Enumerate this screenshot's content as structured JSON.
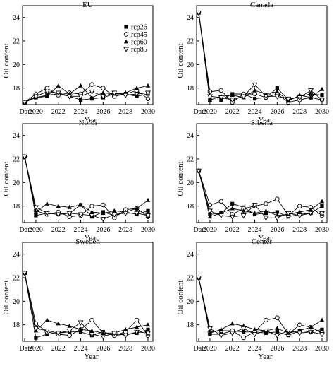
{
  "chart_data": {
    "xlabel": "Year",
    "ylabel": "Oil content",
    "x_categories": [
      "Data",
      "2020",
      "2021",
      "2022",
      "2023",
      "2024",
      "2025",
      "2026",
      "2027",
      "2028",
      "2029",
      "2030"
    ],
    "x_tick_labels": [
      "Data",
      "2020",
      "2022",
      "2024",
      "2026",
      "2028",
      "2030"
    ],
    "y_ticks": [
      18,
      20,
      22,
      24
    ],
    "ylim": [
      16.6,
      25.0
    ],
    "legend": {
      "entries": [
        {
          "name": "rcp26",
          "marker": "square"
        },
        {
          "name": "rcp45",
          "marker": "circle"
        },
        {
          "name": "rcp60",
          "marker": "triangle-up"
        },
        {
          "name": "rcp85",
          "marker": "triangle-down"
        }
      ]
    },
    "panels": [
      {
        "title": "EU",
        "type": "line",
        "series": [
          {
            "name": "rcp26",
            "values": [
              16.8,
              17.2,
              17.4,
              17.5,
              17.3,
              17.0,
              17.1,
              17.2,
              17.5,
              17.5,
              17.3,
              17.5
            ]
          },
          {
            "name": "rcp45",
            "values": [
              16.8,
              17.5,
              18.0,
              17.4,
              17.6,
              17.5,
              18.3,
              18.0,
              17.3,
              17.5,
              17.8,
              17.1
            ]
          },
          {
            "name": "rcp60",
            "values": [
              16.8,
              17.2,
              17.3,
              18.2,
              17.5,
              18.2,
              17.2,
              17.6,
              17.5,
              17.6,
              18.0,
              18.2
            ]
          },
          {
            "name": "rcp85",
            "values": [
              16.8,
              17.3,
              17.7,
              17.6,
              17.3,
              17.3,
              17.7,
              17.3,
              17.6,
              17.4,
              17.5,
              17.6
            ]
          }
        ]
      },
      {
        "title": "Canada",
        "type": "line",
        "series": [
          {
            "name": "rcp26",
            "values": [
              24.4,
              17.0,
              17.0,
              17.5,
              17.5,
              17.1,
              17.2,
              18.0,
              17.0,
              17.3,
              17.5,
              17.4
            ]
          },
          {
            "name": "rcp45",
            "values": [
              24.4,
              17.7,
              17.8,
              16.8,
              17.5,
              17.5,
              17.2,
              17.5,
              16.8,
              17.0,
              17.2,
              17.0
            ]
          },
          {
            "name": "rcp60",
            "values": [
              24.4,
              17.0,
              17.3,
              17.4,
              17.2,
              17.8,
              17.5,
              17.7,
              16.9,
              17.4,
              17.2,
              17.9
            ]
          },
          {
            "name": "rcp85",
            "values": [
              24.4,
              17.3,
              17.2,
              17.0,
              17.3,
              18.3,
              17.3,
              17.3,
              17.1,
              17.2,
              17.8,
              17.0
            ]
          }
        ]
      },
      {
        "title": "North",
        "type": "line",
        "series": [
          {
            "name": "rcp26",
            "values": [
              22.2,
              17.2,
              17.4,
              17.3,
              17.4,
              18.1,
              17.1,
              17.5,
              17.2,
              17.5,
              17.3,
              17.6
            ]
          },
          {
            "name": "rcp45",
            "values": [
              22.2,
              17.6,
              17.3,
              17.5,
              17.1,
              17.2,
              18.0,
              18.1,
              17.0,
              17.7,
              17.8,
              17.1
            ]
          },
          {
            "name": "rcp60",
            "values": [
              22.2,
              17.5,
              18.2,
              18.0,
              17.9,
              18.1,
              17.5,
              17.4,
              17.6,
              17.5,
              17.8,
              18.5
            ]
          },
          {
            "name": "rcp85",
            "values": [
              22.2,
              17.9,
              17.4,
              17.3,
              17.4,
              17.3,
              17.2,
              16.9,
              17.3,
              17.4,
              17.4,
              17.2
            ]
          }
        ]
      },
      {
        "title": "Siberia",
        "type": "line",
        "series": [
          {
            "name": "rcp26",
            "values": [
              21.0,
              17.3,
              17.4,
              18.2,
              17.9,
              17.3,
              17.4,
              17.5,
              17.1,
              17.3,
              17.4,
              18.0
            ]
          },
          {
            "name": "rcp45",
            "values": [
              21.0,
              18.1,
              18.4,
              17.3,
              17.8,
              18.0,
              18.2,
              18.6,
              17.2,
              18.0,
              17.9,
              17.2
            ]
          },
          {
            "name": "rcp60",
            "values": [
              21.0,
              17.1,
              17.4,
              17.8,
              17.6,
              17.4,
              17.6,
              17.2,
              17.3,
              17.5,
              17.7,
              18.4
            ]
          },
          {
            "name": "rcp85",
            "values": [
              21.0,
              17.6,
              17.2,
              17.1,
              17.2,
              18.1,
              17.0,
              17.0,
              17.4,
              17.2,
              17.4,
              17.4
            ]
          }
        ]
      },
      {
        "title": "Sweden",
        "type": "line",
        "series": [
          {
            "name": "rcp26",
            "values": [
              22.4,
              16.9,
              17.2,
              17.3,
              17.4,
              17.4,
              17.1,
              17.4,
              17.1,
              17.2,
              17.3,
              17.6
            ]
          },
          {
            "name": "rcp45",
            "values": [
              22.4,
              18.1,
              17.4,
              17.2,
              17.1,
              17.6,
              18.4,
              17.3,
              17.1,
              17.4,
              18.4,
              17.1
            ]
          },
          {
            "name": "rcp60",
            "values": [
              22.4,
              17.5,
              18.4,
              18.1,
              17.9,
              17.6,
              17.5,
              17.3,
              17.3,
              17.6,
              17.8,
              18.0
            ]
          },
          {
            "name": "rcp85",
            "values": [
              22.4,
              17.7,
              17.5,
              17.3,
              17.5,
              18.2,
              17.2,
              17.0,
              17.3,
              17.1,
              17.4,
              17.3
            ]
          }
        ]
      },
      {
        "title": "Center",
        "type": "line",
        "series": [
          {
            "name": "rcp26",
            "values": [
              22.0,
              17.2,
              17.2,
              17.5,
              17.4,
              17.4,
              17.3,
              17.4,
              17.1,
              17.5,
              17.4,
              17.6
            ]
          },
          {
            "name": "rcp45",
            "values": [
              22.0,
              17.4,
              17.5,
              17.5,
              16.9,
              17.4,
              18.4,
              18.6,
              17.2,
              18.0,
              17.8,
              17.3
            ]
          },
          {
            "name": "rcp60",
            "values": [
              22.0,
              17.3,
              17.6,
              18.1,
              17.9,
              17.6,
              17.5,
              17.7,
              17.3,
              17.5,
              17.8,
              18.4
            ]
          },
          {
            "name": "rcp85",
            "values": [
              22.0,
              17.7,
              17.1,
              17.3,
              17.7,
              17.2,
              17.5,
              17.1,
              17.5,
              17.3,
              17.4,
              17.2
            ]
          }
        ]
      }
    ]
  }
}
